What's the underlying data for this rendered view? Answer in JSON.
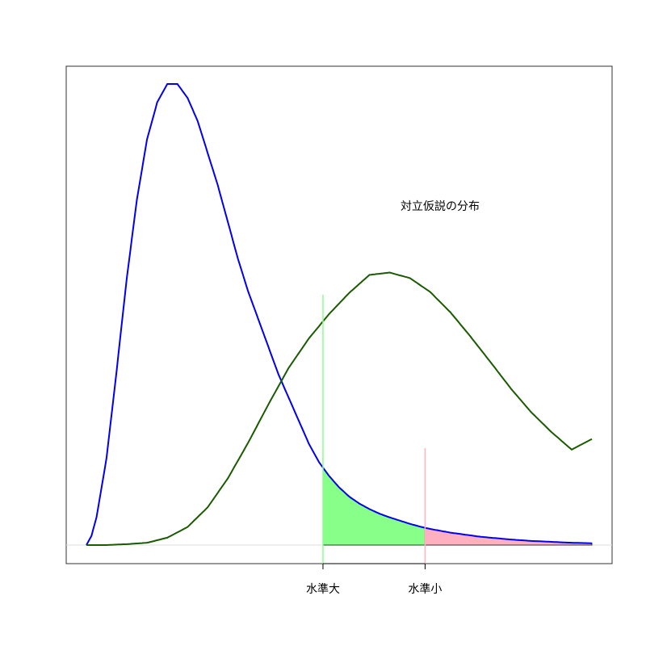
{
  "chart_data": {
    "type": "area",
    "annotation": "対立仮説の分布",
    "xlim": [
      0,
      5
    ],
    "ylim": [
      0,
      1
    ],
    "grid": false,
    "x_ticks": [
      {
        "label": "水準大",
        "x": 2.34,
        "color": "#88ff88"
      },
      {
        "label": "水準小",
        "x": 3.35,
        "color": "#ffb0c0"
      }
    ],
    "series": [
      {
        "color": "#0000ee",
        "x": [
          0.0,
          0.05,
          0.1,
          0.2,
          0.3,
          0.4,
          0.5,
          0.6,
          0.7,
          0.8,
          0.9,
          1.0,
          1.1,
          1.2,
          1.3,
          1.4,
          1.5,
          1.6,
          1.7,
          1.8,
          1.9,
          2.0,
          2.1,
          2.2,
          2.3,
          2.4,
          2.5,
          2.6,
          2.7,
          2.8,
          2.9,
          3.0,
          3.1,
          3.2,
          3.3,
          3.4,
          3.5,
          3.6,
          3.7,
          3.8,
          3.9,
          4.0,
          4.2,
          4.4,
          4.6,
          4.8,
          5.0
        ],
        "y": [
          0.0,
          0.02,
          0.06,
          0.19,
          0.38,
          0.58,
          0.75,
          0.88,
          0.96,
          1.0,
          1.0,
          0.97,
          0.92,
          0.85,
          0.78,
          0.7,
          0.62,
          0.55,
          0.49,
          0.43,
          0.37,
          0.32,
          0.27,
          0.22,
          0.18,
          0.15,
          0.125,
          0.105,
          0.09,
          0.078,
          0.068,
          0.06,
          0.053,
          0.046,
          0.04,
          0.035,
          0.031,
          0.027,
          0.024,
          0.021,
          0.018,
          0.016,
          0.012,
          0.009,
          0.007,
          0.005,
          0.004
        ]
      },
      {
        "color": "#1a5a00",
        "x": [
          0.0,
          0.2,
          0.4,
          0.6,
          0.8,
          1.0,
          1.2,
          1.4,
          1.6,
          1.8,
          2.0,
          2.2,
          2.4,
          2.6,
          2.8,
          3.0,
          3.2,
          3.4,
          3.6,
          3.8,
          4.0,
          4.2,
          4.4,
          4.6,
          4.8,
          5.0
        ],
        "y": [
          0.0,
          0.0,
          0.002,
          0.005,
          0.016,
          0.039,
          0.082,
          0.145,
          0.222,
          0.305,
          0.384,
          0.448,
          0.501,
          0.547,
          0.586,
          0.591,
          0.579,
          0.549,
          0.505,
          0.452,
          0.396,
          0.339,
          0.288,
          0.245,
          0.207,
          0.23
        ]
      }
    ]
  }
}
